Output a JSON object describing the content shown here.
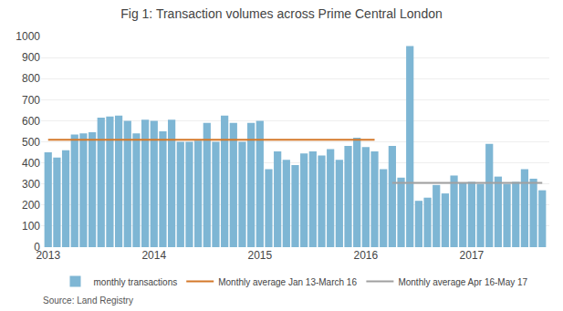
{
  "chart_data": {
    "type": "bar",
    "title": "Fig 1: Transaction volumes across Prime Central London",
    "annotations": [
      "Source: Land Registry"
    ],
    "categories": [
      "2013",
      null,
      null,
      null,
      null,
      null,
      null,
      null,
      null,
      null,
      null,
      null,
      "2014",
      null,
      null,
      null,
      null,
      null,
      null,
      null,
      null,
      null,
      null,
      null,
      "2015",
      null,
      null,
      null,
      null,
      null,
      null,
      null,
      null,
      null,
      null,
      null,
      "2016",
      null,
      null,
      null,
      null,
      null,
      null,
      null,
      null,
      null,
      null,
      null,
      "2017",
      null,
      null,
      null,
      null,
      null,
      null,
      null,
      null
    ],
    "series": [
      {
        "name": "monthly transactions",
        "type": "bar",
        "color": "#7eb6d4",
        "values": [
          450,
          425,
          460,
          535,
          540,
          545,
          615,
          620,
          625,
          600,
          540,
          605,
          600,
          550,
          605,
          500,
          500,
          505,
          590,
          500,
          625,
          590,
          500,
          590,
          600,
          370,
          455,
          415,
          390,
          445,
          455,
          435,
          465,
          415,
          480,
          520,
          475,
          455,
          370,
          480,
          330,
          955,
          220,
          235,
          295,
          255,
          340,
          305,
          310,
          300,
          490,
          335,
          300,
          310,
          370,
          325,
          270
        ]
      },
      {
        "name": "Monthly average Jan 13-March 16",
        "type": "line",
        "color": "#d4782a",
        "values": [
          510,
          510,
          510,
          510,
          510,
          510,
          510,
          510,
          510,
          510,
          510,
          510,
          510,
          510,
          510,
          510,
          510,
          510,
          510,
          510,
          510,
          510,
          510,
          510,
          510,
          510,
          510,
          510,
          510,
          510,
          510,
          510,
          510,
          510,
          510,
          510,
          510,
          510,
          null,
          null,
          null,
          null,
          null,
          null,
          null,
          null,
          null,
          null,
          null,
          null,
          null,
          null,
          null,
          null,
          null,
          null,
          null
        ]
      },
      {
        "name": "Monthly average Apr 16-May 17",
        "type": "line",
        "color": "#a0a0a0",
        "values": [
          null,
          null,
          null,
          null,
          null,
          null,
          null,
          null,
          null,
          null,
          null,
          null,
          null,
          null,
          null,
          null,
          null,
          null,
          null,
          null,
          null,
          null,
          null,
          null,
          null,
          null,
          null,
          null,
          null,
          null,
          null,
          null,
          null,
          null,
          null,
          null,
          null,
          null,
          null,
          305,
          305,
          305,
          305,
          305,
          305,
          305,
          305,
          305,
          305,
          305,
          305,
          305,
          305,
          305,
          305,
          305,
          305
        ]
      }
    ],
    "ylim": [
      0,
      1000
    ],
    "yticks": [
      0,
      100,
      200,
      300,
      400,
      500,
      600,
      700,
      800,
      900,
      1000
    ],
    "grid": true,
    "legend": "bottom"
  }
}
